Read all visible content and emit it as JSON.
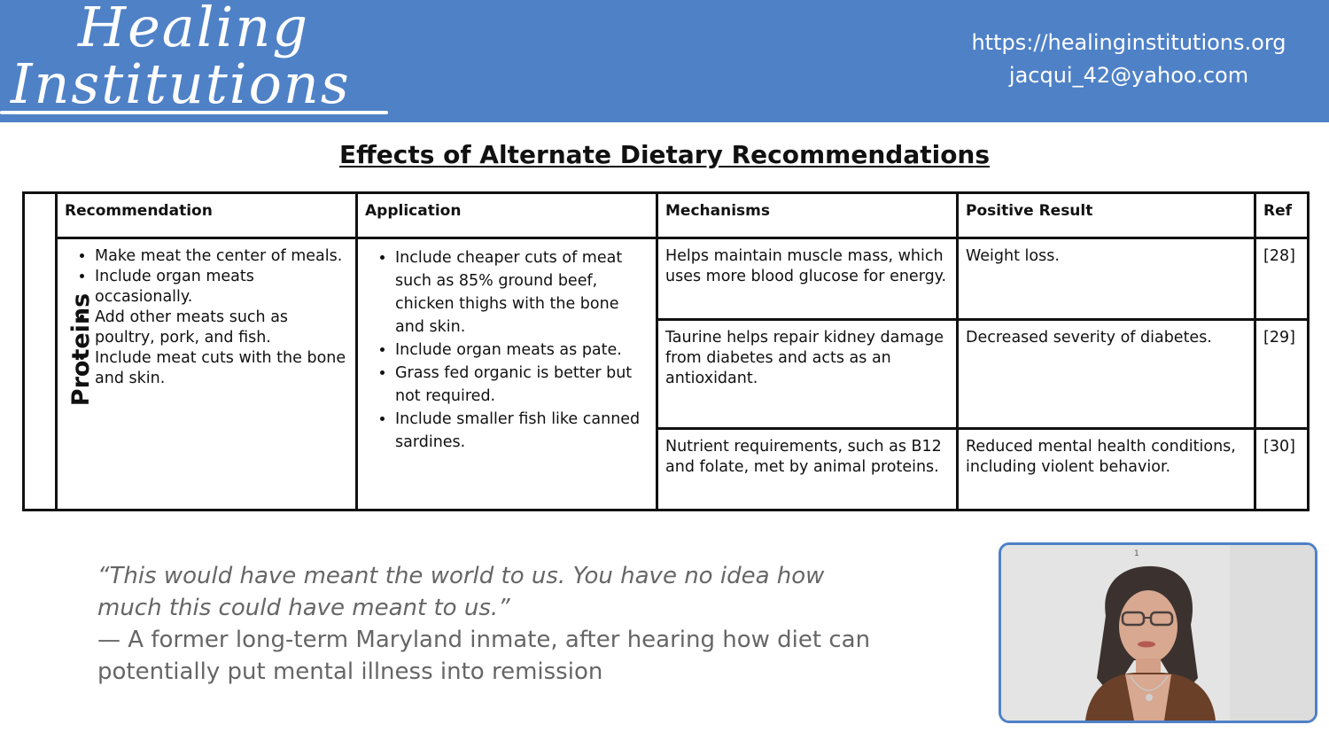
{
  "logo": {
    "line1": "Healing",
    "line2": "Institutions"
  },
  "contact": {
    "url": "https://healinginstitutions.org",
    "email": "jacqui_42@yahoo.com"
  },
  "title": "Effects of Alternate Dietary Recommendations",
  "table": {
    "row_header": "Proteins",
    "headers": [
      "Recommendation",
      "Application",
      "Mechanisms",
      "Positive Result",
      "Ref"
    ],
    "recommendations": [
      "Make meat the center of meals.",
      "Include organ meats occasionally.",
      "Add other meats such as poultry, pork, and fish.",
      "Include meat cuts with the bone and skin."
    ],
    "applications": [
      "Include cheaper cuts of meat such as 85% ground beef, chicken thighs with the bone and skin.",
      "Include organ meats as pate.",
      "Grass fed organic is better but not required.",
      "Include smaller fish like canned sardines."
    ],
    "rows": [
      {
        "mechanism": "Helps maintain muscle mass, which uses more blood glucose for energy.",
        "result": "Weight loss.",
        "ref": "[28]"
      },
      {
        "mechanism": "Taurine helps repair kidney damage from diabetes and acts as an antioxidant.",
        "result": "Decreased severity of diabetes.",
        "ref": "[29]"
      },
      {
        "mechanism": "Nutrient requirements, such as B12 and folate, met by animal proteins.",
        "result": "Reduced mental health conditions, including violent behavior.",
        "ref": "[30]"
      }
    ]
  },
  "quote": {
    "text": "“This would have meant the world to us. You have no idea how much this could have meant to us.”",
    "attribution": "— A former long-term Maryland inmate, after hearing how diet can potentially put mental illness into remission"
  },
  "webcam": {
    "label": "1"
  }
}
